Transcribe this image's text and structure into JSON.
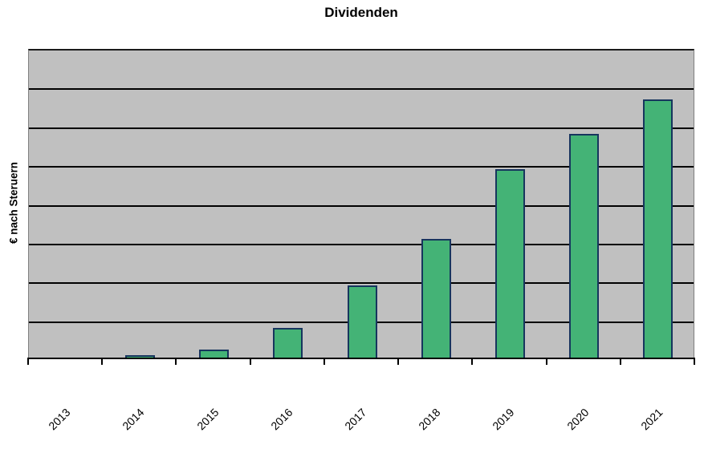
{
  "page": {
    "background": "#ffffff"
  },
  "chart_data": {
    "type": "bar",
    "title": "Dividenden",
    "xlabel": "",
    "ylabel": "€ nach Steruern",
    "categories": [
      "2013",
      "2014",
      "2015",
      "2016",
      "2017",
      "2018",
      "2019",
      "2020",
      "2021"
    ],
    "values": [
      0,
      0.1,
      0.25,
      0.8,
      1.9,
      3.1,
      4.9,
      5.8,
      6.7
    ],
    "ylim": [
      0,
      8
    ],
    "grid_divisions": 8,
    "value_note": "y axis shows no numeric tick labels; values measured in gridline divisions",
    "gridlines": "horizontal black lines, on",
    "legend": "none",
    "x_tick_label_rotation_deg": 45,
    "colors": {
      "bar_fill": "#44b376",
      "bar_border": "#17355e",
      "plot_background": "#c0c0c0",
      "gridline": "#000000",
      "axis": "#000000",
      "plot_border": "#808080",
      "text": "#000000",
      "page_background": "#ffffff"
    }
  }
}
